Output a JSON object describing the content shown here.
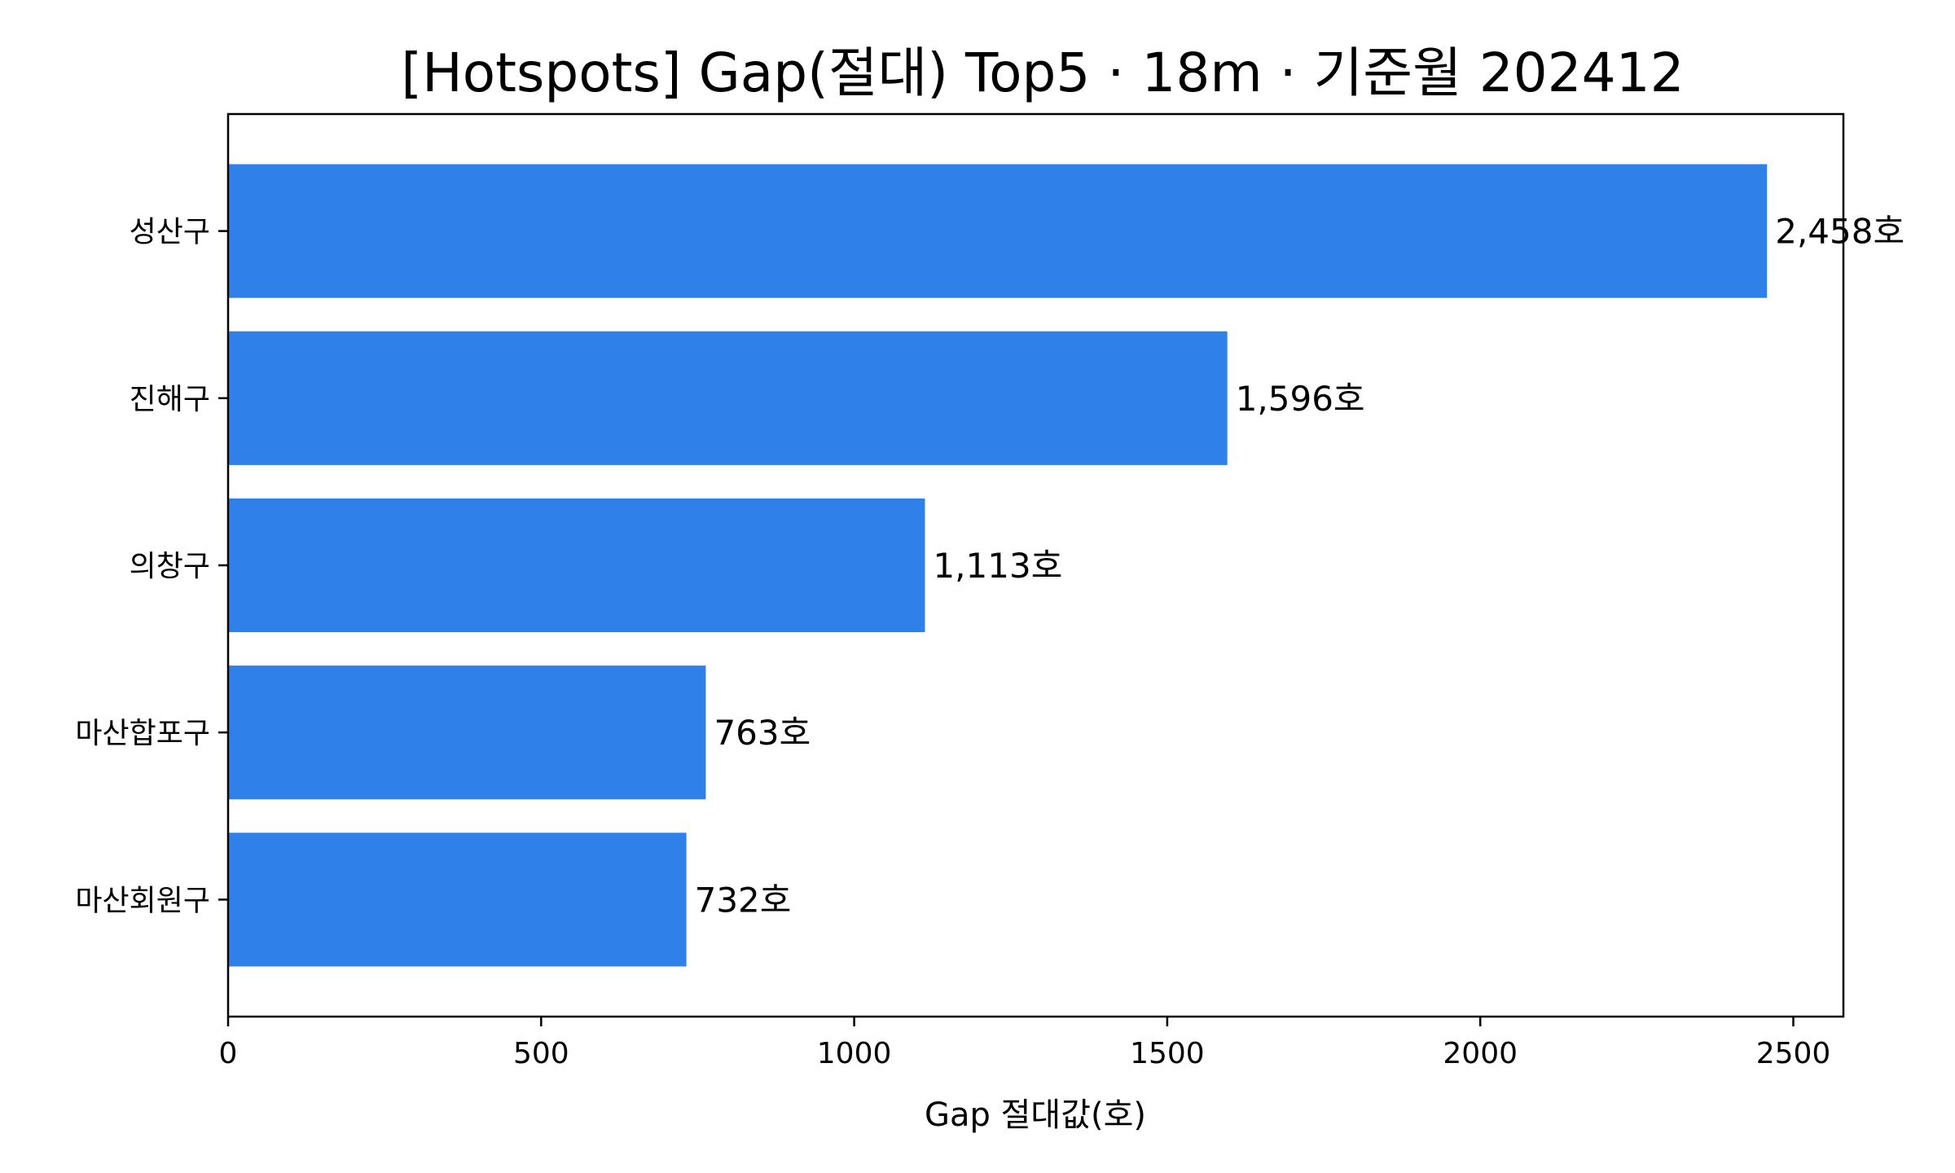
{
  "chart_data": {
    "type": "bar",
    "orientation": "horizontal",
    "title": "[Hotspots] Gap(절대) Top5 · 18m · 기준월 202412",
    "xlabel": "Gap 절대값(호)",
    "ylabel": "",
    "categories": [
      "성산구",
      "진해구",
      "의창구",
      "마산합포구",
      "마산회원구"
    ],
    "values": [
      2458,
      1596,
      1113,
      763,
      732
    ],
    "data_labels": [
      "2,458호",
      "1,596호",
      "1,113호",
      "763호",
      "732호"
    ],
    "xlim": [
      0,
      2580
    ],
    "xticks": [
      0,
      500,
      1000,
      1500,
      2000,
      2500
    ],
    "xtick_labels": [
      "0",
      "500",
      "1000",
      "1500",
      "2000",
      "2500"
    ],
    "bar_color": "#3080ea",
    "grid": false,
    "legend": "none"
  }
}
